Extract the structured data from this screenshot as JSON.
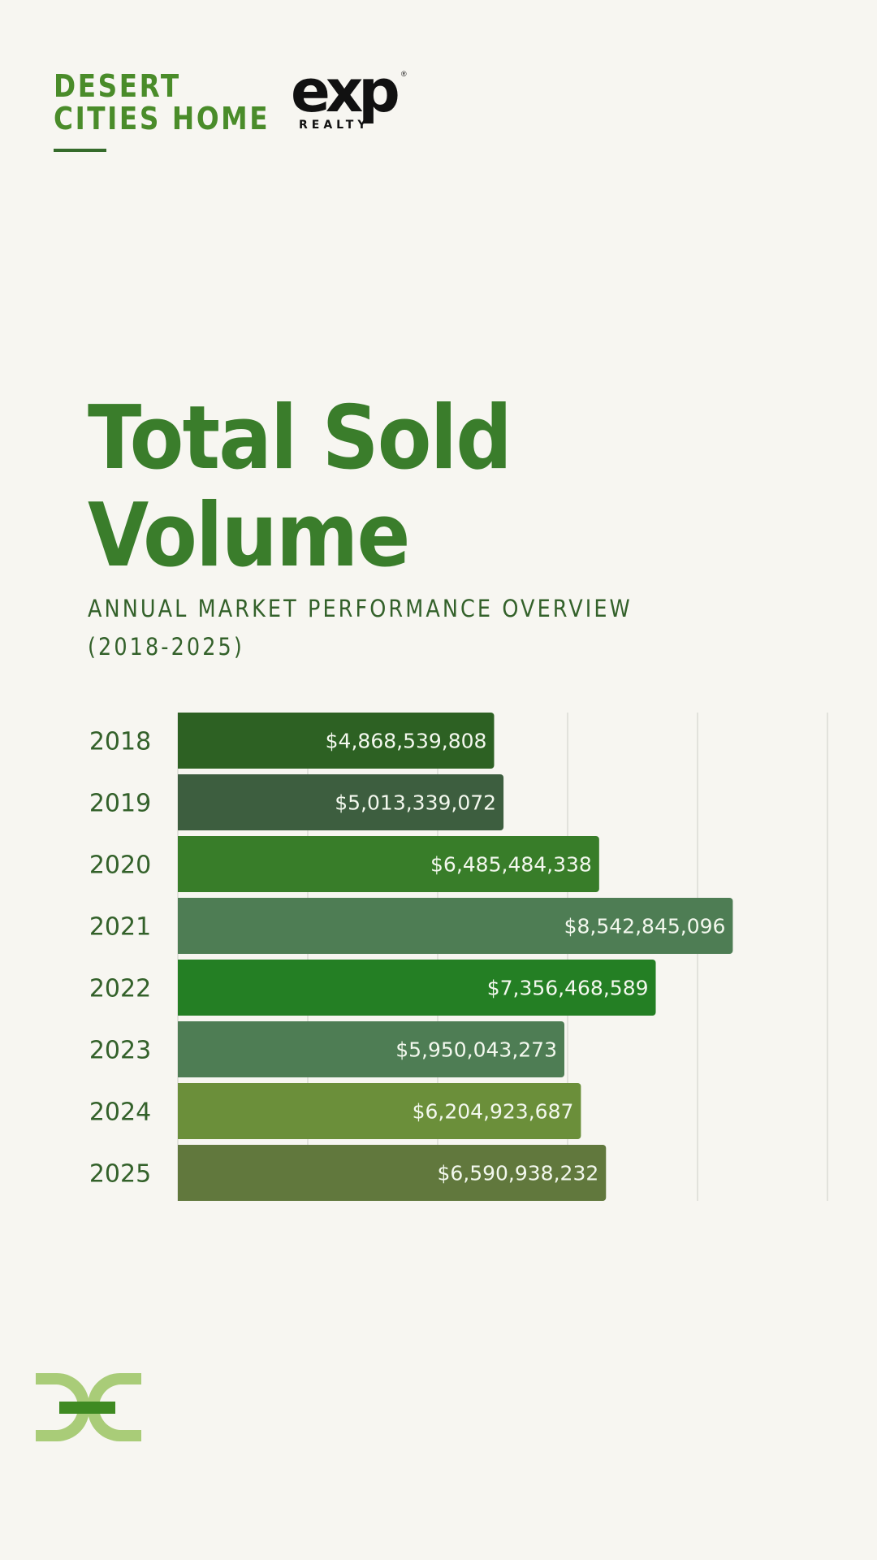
{
  "header": {
    "brand_lines": [
      "DESERT",
      "CITIES HOME"
    ],
    "partner_logo": {
      "word": "exp",
      "sub": "REALTY",
      "registered": "®"
    }
  },
  "title_lines": [
    "Total Sold",
    "Volume"
  ],
  "subtitle_lines": [
    "ANNUAL MARKET PERFORMANCE OVERVIEW",
    "(2018-2025)"
  ],
  "footer": {
    "logo_icon": "desert-cities-home-monogram-icon"
  },
  "colors": {
    "background": "#f7f6f1",
    "brand_green": "#4a8c2a",
    "title_green": "#3a7d2b",
    "logo_light": "#a9cc78",
    "logo_dark": "#3f8a22"
  },
  "chart_data": {
    "type": "bar",
    "orientation": "horizontal",
    "title": "Total Sold Volume",
    "subtitle": "ANNUAL MARKET PERFORMANCE OVERVIEW (2018-2025)",
    "xlabel": "",
    "ylabel": "",
    "categories": [
      "2018",
      "2019",
      "2020",
      "2021",
      "2022",
      "2023",
      "2024",
      "2025"
    ],
    "values": [
      4868539808,
      5013339072,
      6485484338,
      8542845096,
      7356468589,
      5950043273,
      6204923687,
      6590938232
    ],
    "data_labels": [
      "$4,868,539,808",
      "$5,013,339,072",
      "$6,485,484,338",
      "$8,542,845,096",
      "$7,356,468,589",
      "$5,950,043,273",
      "$6,204,923,687",
      "$6,590,938,232"
    ],
    "bar_colors": [
      "#2d6123",
      "#3d5e3f",
      "#387d29",
      "#4e7d54",
      "#247f24",
      "#4e7d54",
      "#6b8f3a",
      "#61783d"
    ],
    "xlim": [
      0,
      10000000000
    ],
    "x_gridlines": [
      0,
      2000000000,
      4000000000,
      6000000000,
      8000000000,
      10000000000
    ],
    "x_tick_labels_shown": false,
    "grid": true,
    "legend": "none"
  }
}
